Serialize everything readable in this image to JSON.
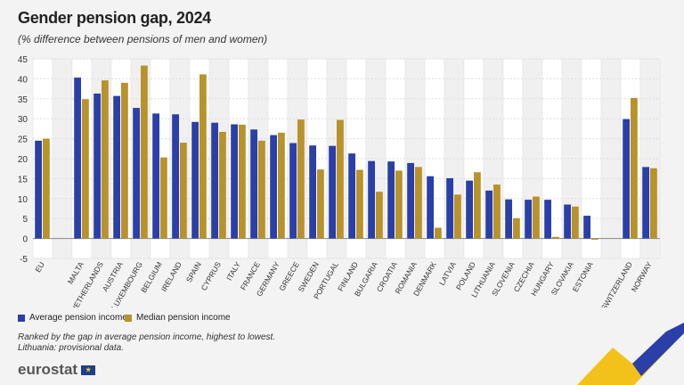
{
  "title": "Gender pension gap, 2024",
  "subtitle": "(% difference between pensions of men and women)",
  "colors": {
    "average": "#2a3fa8",
    "median": "#b8922a",
    "background": "#f3f3f3"
  },
  "notes": [
    "Ranked by the gap in average pension income, highest to lowest.",
    "Lithuania: provisional data."
  ],
  "logo": "eurostat",
  "chart_data": {
    "type": "bar",
    "title": "Gender pension gap, 2024",
    "ylim": [
      -5,
      45
    ],
    "yticks": [
      -5,
      0,
      5,
      10,
      15,
      20,
      25,
      30,
      35,
      40,
      45
    ],
    "grid": true,
    "legend_placement": "bottom-left",
    "categories": [
      "EU",
      "",
      "MALTA",
      "NETHERLANDS",
      "AUSTRIA",
      "LUXEMBOURG",
      "BELGIUM",
      "IRELAND",
      "SPAIN",
      "CYPRUS",
      "ITALY",
      "FRANCE",
      "GERMANY",
      "GREECE",
      "SWEDEN",
      "PORTUGAL",
      "FINLAND",
      "BULGARIA",
      "CROATIA",
      "ROMANIA",
      "DENMARK",
      "LATVIA",
      "POLAND",
      "LITHUANIA",
      "SLOVENIA",
      "CZECHIA",
      "HUNGARY",
      "SLOVAKIA",
      "ESTONIA",
      "",
      "SWITZERLAND",
      "NORWAY"
    ],
    "series": [
      {
        "name": "Average pension income",
        "values": [
          24.5,
          null,
          40.3,
          36.3,
          35.7,
          32.7,
          31.3,
          31.1,
          29.2,
          29.0,
          28.6,
          27.3,
          25.9,
          23.9,
          23.3,
          23.2,
          21.3,
          19.4,
          19.3,
          18.9,
          15.6,
          15.1,
          14.5,
          12.0,
          9.8,
          9.7,
          9.7,
          8.5,
          5.7,
          null,
          29.9,
          17.9
        ]
      },
      {
        "name": "Median pension income",
        "values": [
          25.0,
          null,
          34.9,
          39.6,
          39.0,
          43.3,
          20.3,
          24.0,
          41.1,
          26.7,
          28.5,
          24.5,
          26.5,
          29.8,
          17.3,
          29.7,
          17.2,
          11.7,
          17.0,
          17.9,
          2.7,
          11.0,
          16.6,
          13.5,
          5.1,
          10.5,
          0.4,
          8.0,
          -0.3,
          null,
          35.2,
          17.6
        ]
      }
    ]
  }
}
